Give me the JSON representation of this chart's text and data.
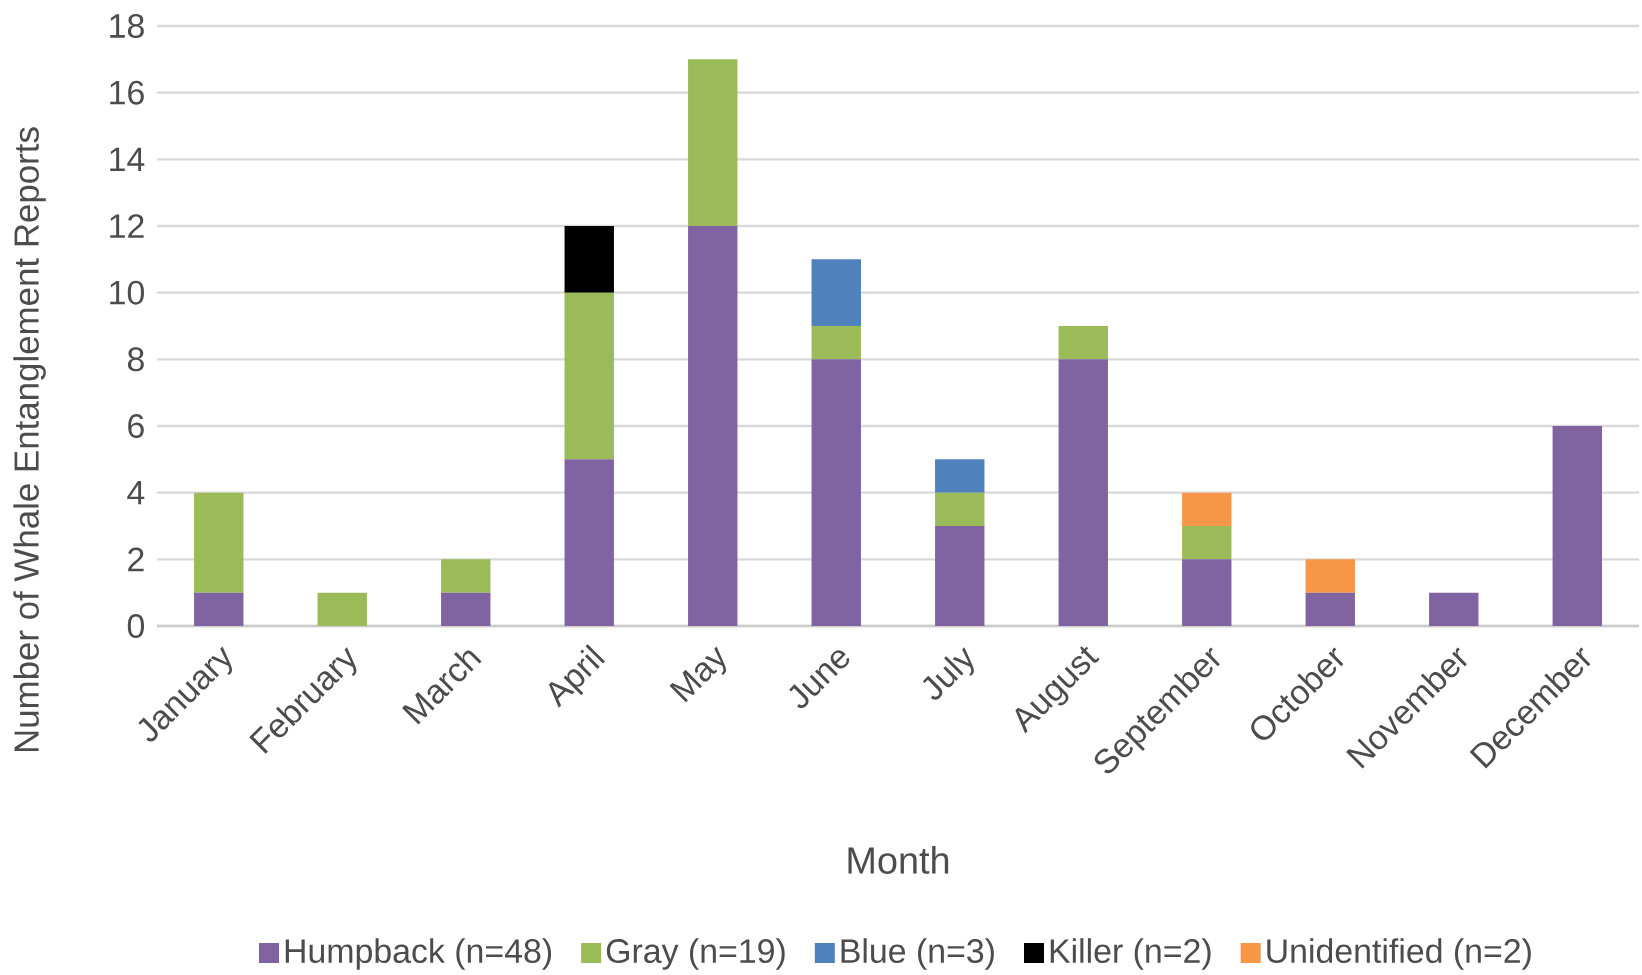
{
  "chart_data": {
    "type": "bar",
    "stacked": true,
    "xlabel": "Month",
    "ylabel": "Number of Whale Entanglement Reports",
    "categories": [
      "January",
      "February",
      "March",
      "April",
      "May",
      "June",
      "July",
      "August",
      "September",
      "October",
      "November",
      "December"
    ],
    "series": [
      {
        "name": "Humpback (n=48)",
        "color": "#8064a2",
        "values": [
          1,
          0,
          1,
          5,
          12,
          8,
          3,
          8,
          2,
          1,
          1,
          6
        ]
      },
      {
        "name": "Gray (n=19)",
        "color": "#9bbb59",
        "values": [
          3,
          1,
          1,
          5,
          5,
          1,
          1,
          1,
          1,
          0,
          0,
          0
        ]
      },
      {
        "name": "Blue (n=3)",
        "color": "#4f81bd",
        "values": [
          0,
          0,
          0,
          0,
          0,
          2,
          1,
          0,
          0,
          0,
          0,
          0
        ]
      },
      {
        "name": "Killer (n=2)",
        "color": "#000000",
        "values": [
          0,
          0,
          0,
          2,
          0,
          0,
          0,
          0,
          0,
          0,
          0,
          0
        ]
      },
      {
        "name": "Unidentified (n=2)",
        "color": "#f79646",
        "values": [
          0,
          0,
          0,
          0,
          0,
          0,
          0,
          0,
          1,
          1,
          0,
          0
        ]
      }
    ],
    "ylim": [
      0,
      18
    ],
    "yticks": [
      0,
      2,
      4,
      6,
      8,
      10,
      12,
      14,
      16,
      18
    ],
    "grid": "y",
    "legend": "bottom"
  }
}
